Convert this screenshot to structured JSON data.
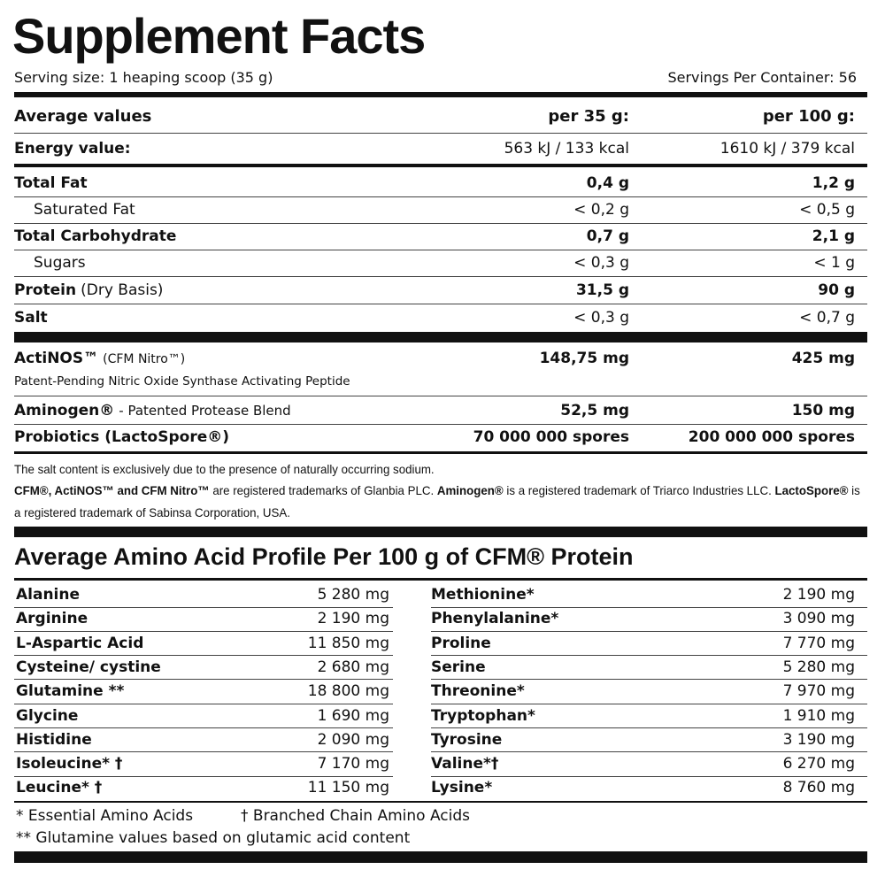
{
  "title": "Supplement Facts",
  "serving_size": "Serving size: 1 heaping scoop (35 g)",
  "servings_per_container": "Servings Per Container: 56",
  "nutrition_table": {
    "header": [
      "Average values",
      "per 35 g:",
      "per 100 g:"
    ],
    "rows": [
      {
        "name": "Energy value:",
        "per_35g": "563 kJ / 133 kcal",
        "per_100g": "1610 kJ / 379 kcal"
      },
      {
        "name": "Total Fat",
        "per_35g": "0,4 g",
        "per_100g": "1,2 g"
      },
      {
        "name": "Saturated Fat",
        "per_35g": "< 0,2 g",
        "per_100g": "< 0,5 g"
      },
      {
        "name": "Total Carbohydrate",
        "per_35g": "0,7 g",
        "per_100g": "2,1 g"
      },
      {
        "name": "Sugars",
        "per_35g": "< 0,3 g",
        "per_100g": "< 1 g"
      },
      {
        "name": "Protein",
        "note": "(Dry Basis)",
        "per_35g": "31,5 g",
        "per_100g": "90 g"
      },
      {
        "name": "Salt",
        "per_35g": "< 0,3 g",
        "per_100g": "< 0,7 g"
      }
    ]
  },
  "actives": [
    {
      "name": "ActiNOS™",
      "note": "(CFM Nitro™)",
      "description": "Patent-Pending Nitric Oxide Synthase Activating Peptide",
      "per_35g": "148,75 mg",
      "per_100g": "425 mg"
    },
    {
      "name": "Aminogen®",
      "note": "- Patented Protease Blend",
      "per_35g": "52,5 mg",
      "per_100g": "150 mg"
    },
    {
      "name": "Probiotics (LactoSpore®)",
      "per_35g": "70 000 000 spores",
      "per_100g": "200 000 000 spores"
    }
  ],
  "footnotes": {
    "salt": "The salt content is exclusively due to the presence of naturally occurring sodium.",
    "trademarks": [
      "CFM®, ActiNOS™ and CFM Nitro™",
      " are registered trademarks of Glanbia PLC. ",
      "Aminogen®",
      " is a registered trademark of Triarco Industries LLC. ",
      "LactoSpore®",
      " is a registered trademark of Sabinsa Corporation, USA."
    ]
  },
  "amino_acid_profile": {
    "title": "Average Amino Acid Profile Per 100 g of CFM® Protein",
    "left": [
      {
        "name": "Alanine",
        "amount": "5 280 mg"
      },
      {
        "name": "Arginine",
        "amount": "2 190 mg"
      },
      {
        "name": "L-Aspartic Acid",
        "amount": "11 850 mg"
      },
      {
        "name": "Cysteine/ cystine",
        "amount": "2 680 mg"
      },
      {
        "name": "Glutamine **",
        "amount": "18 800 mg"
      },
      {
        "name": "Glycine",
        "amount": "1 690 mg"
      },
      {
        "name": "Histidine",
        "amount": "2 090 mg"
      },
      {
        "name": "Isoleucine* †",
        "amount": "7 170 mg"
      },
      {
        "name": "Leucine* †",
        "amount": "11 150 mg"
      }
    ],
    "right": [
      {
        "name": "Methionine*",
        "amount": "2 190 mg"
      },
      {
        "name": "Phenylalanine*",
        "amount": "3 090 mg"
      },
      {
        "name": "Proline",
        "amount": "7 770 mg"
      },
      {
        "name": "Serine",
        "amount": "5 280 mg"
      },
      {
        "name": "Threonine*",
        "amount": "7 970 mg"
      },
      {
        "name": "Tryptophan*",
        "amount": "1 910 mg"
      },
      {
        "name": "Tyrosine",
        "amount": "3 190 mg"
      },
      {
        "name": "Valine*†",
        "amount": "6 270 mg"
      },
      {
        "name": "Lysine*",
        "amount": "8 760 mg"
      }
    ],
    "notes": [
      "* Essential Amino Acids",
      "† Branched Chain Amino Acids",
      "** Glutamine values based on glutamic acid content"
    ]
  }
}
